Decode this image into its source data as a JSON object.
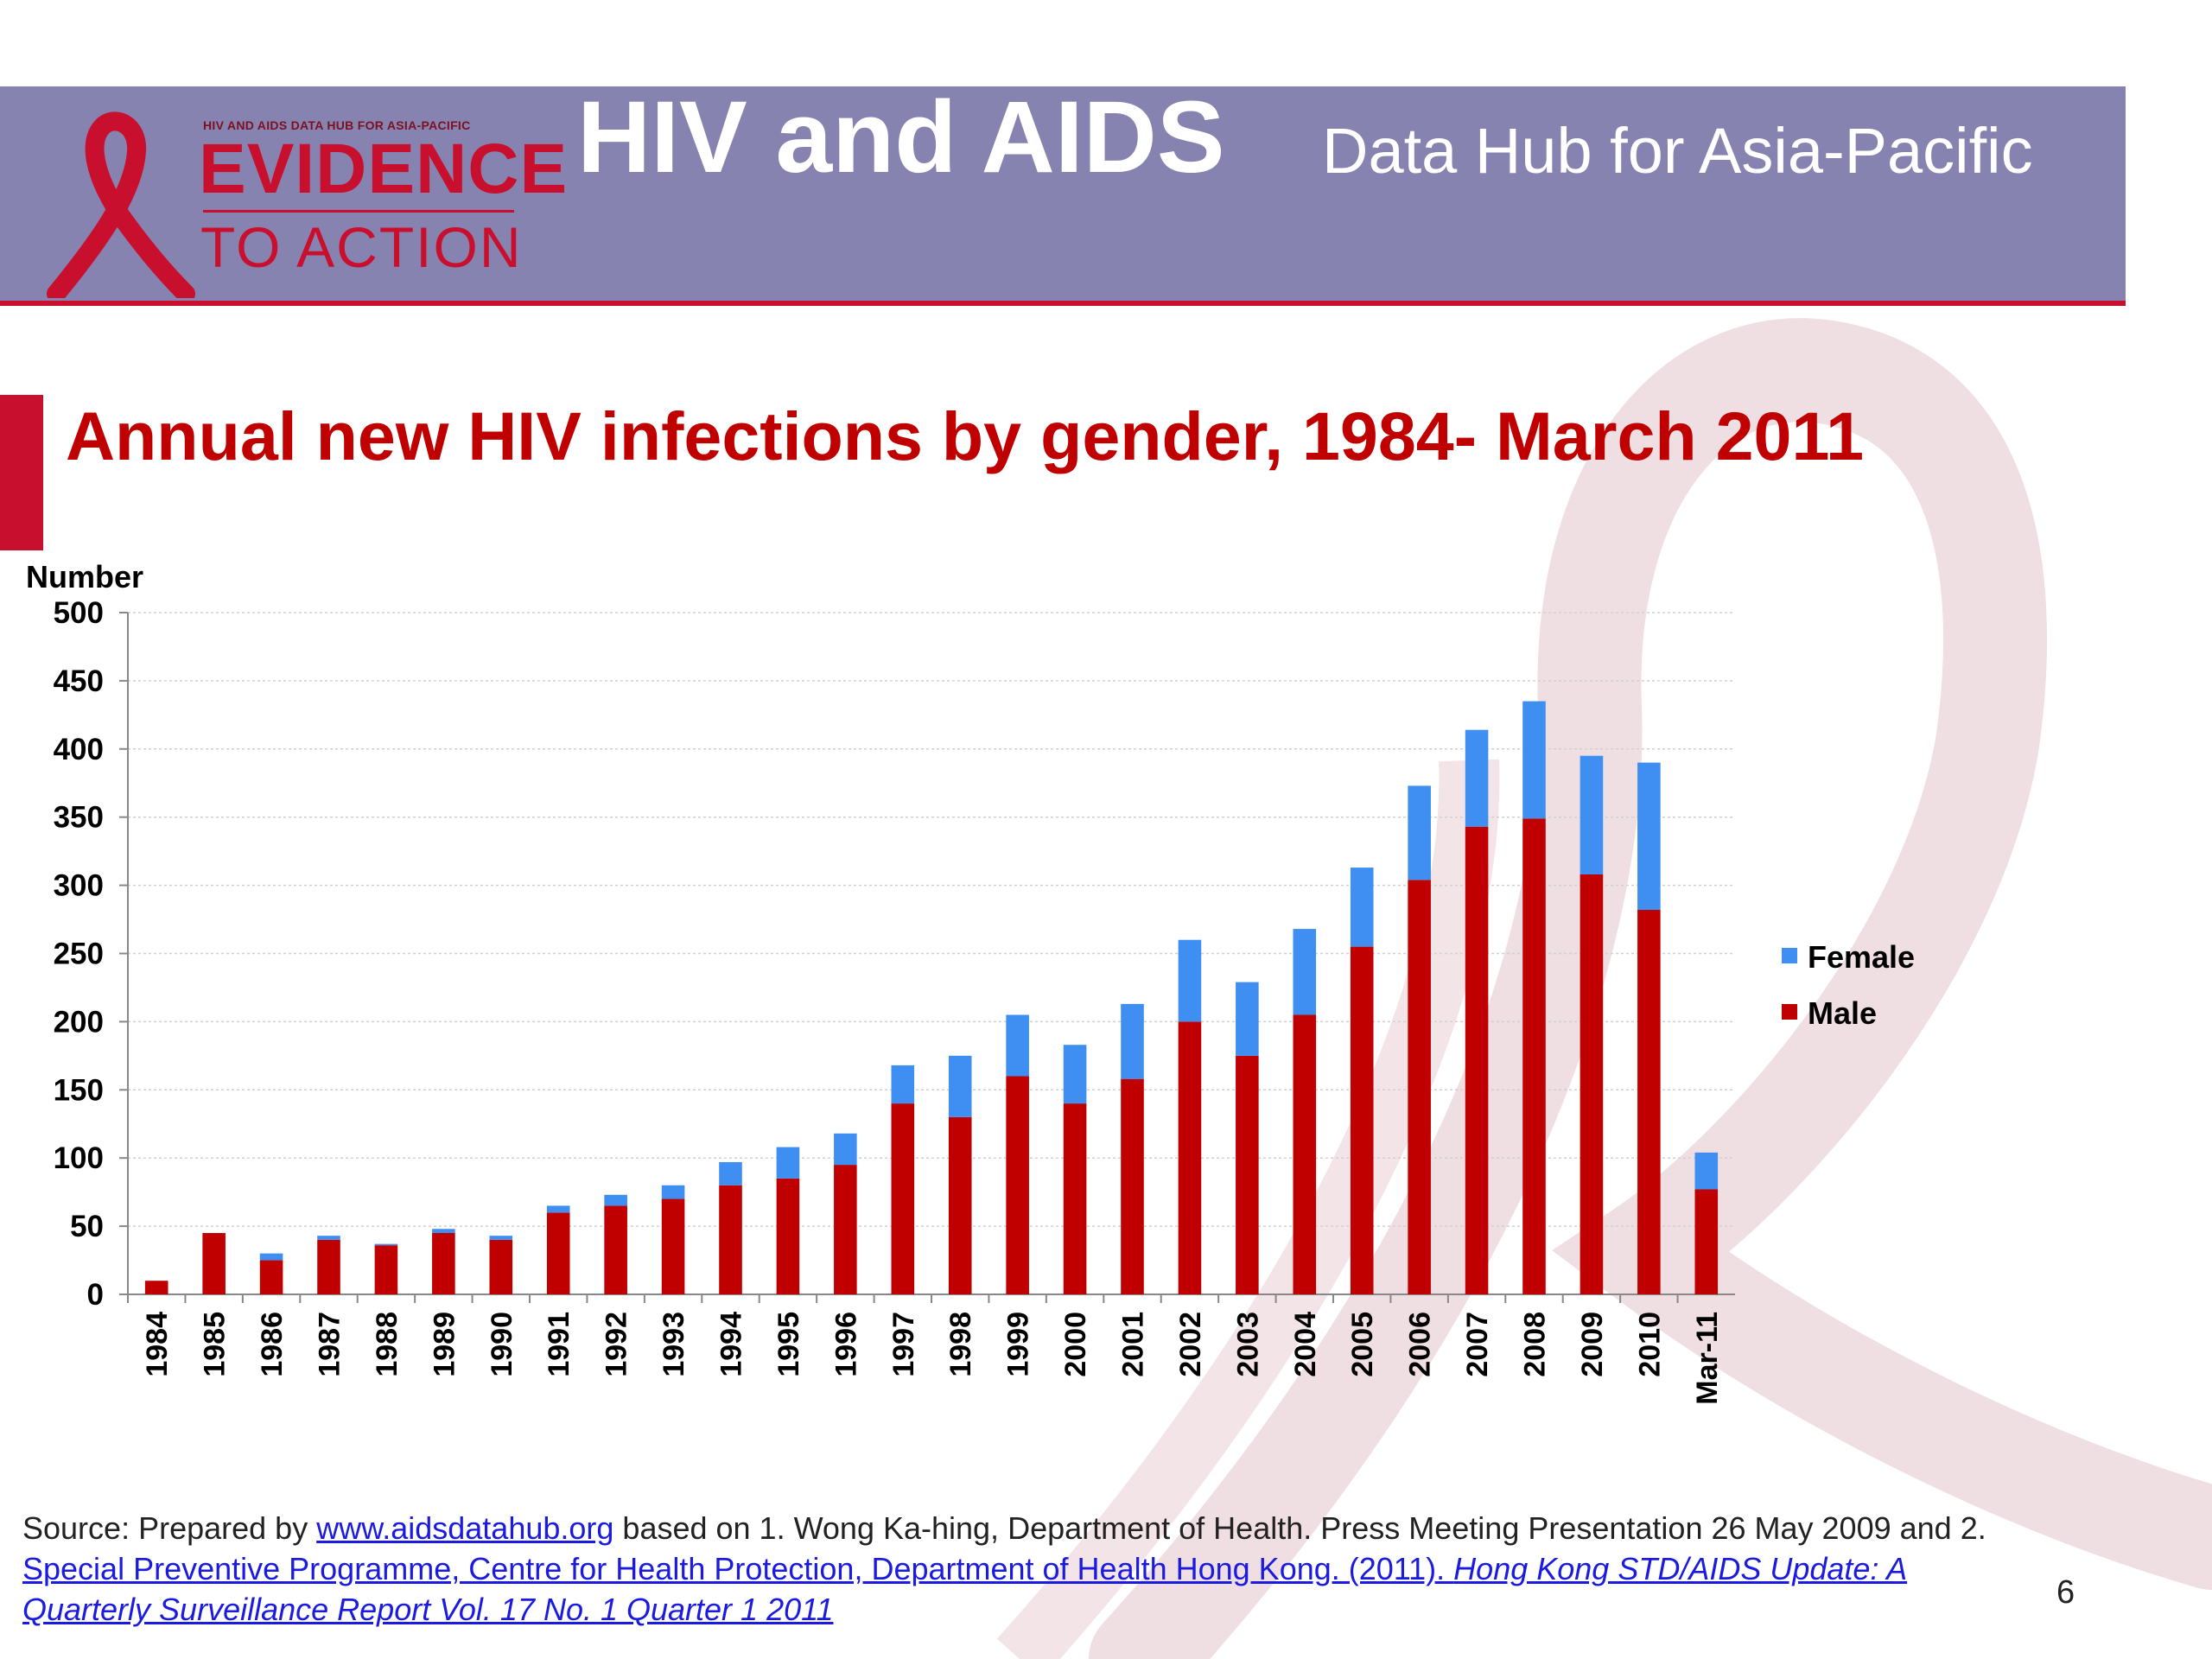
{
  "header": {
    "logo_tagline": "HIV AND AIDS DATA HUB FOR ASIA-PACIFIC",
    "logo_line1": "EVIDENCE",
    "logo_line2": "TO ACTION",
    "brand_title": "HIV and AIDS",
    "brand_subtitle": "Data Hub for Asia-Pacific"
  },
  "slide": {
    "title": "Annual new HIV infections by gender, 1984- March 2011",
    "page_number": "6"
  },
  "source": {
    "prefix": "Source: Prepared by ",
    "link1": "www.aidsdatahub.org",
    "middle": "  based on 1. Wong Ka-hing, Department of Health. Press Meeting Presentation 26 May 2009 and 2. ",
    "link2": "Special Preventive Programme, Centre for Health Protection, Department of Health Hong Kong. (2011). ",
    "link2_italic": "Hong Kong STD/AIDS Update: A Quarterly Surveillance Report Vol. 17 No. 1 Quarter 1 2011"
  },
  "colors": {
    "banner": "#8783b0",
    "accent_red": "#c8102e",
    "title_red": "#c00000",
    "male": "#c00000",
    "female": "#3f8ef2",
    "ribbon_watermark": "#ecd8dd"
  },
  "chart_data": {
    "type": "bar",
    "stacked": true,
    "ylabel": "Number",
    "ylim": [
      0,
      500
    ],
    "yticks": [
      0,
      50,
      100,
      150,
      200,
      250,
      300,
      350,
      400,
      450,
      500
    ],
    "grid": true,
    "legend_position": "right",
    "categories": [
      "1984",
      "1985",
      "1986",
      "1987",
      "1988",
      "1989",
      "1990",
      "1991",
      "1992",
      "1993",
      "1994",
      "1995",
      "1996",
      "1997",
      "1998",
      "1999",
      "2000",
      "2001",
      "2002",
      "2003",
      "2004",
      "2005",
      "2006",
      "2007",
      "2008",
      "2009",
      "2010",
      "Mar-11"
    ],
    "series": [
      {
        "name": "Male",
        "color": "#c00000",
        "values": [
          10,
          45,
          25,
          40,
          36,
          45,
          40,
          60,
          65,
          70,
          80,
          85,
          95,
          140,
          130,
          160,
          140,
          158,
          200,
          175,
          205,
          255,
          304,
          343,
          349,
          308,
          282,
          77
        ]
      },
      {
        "name": "Female",
        "color": "#3f8ef2",
        "values": [
          0,
          0,
          5,
          3,
          1,
          3,
          3,
          5,
          8,
          10,
          17,
          23,
          23,
          28,
          45,
          45,
          43,
          55,
          60,
          54,
          63,
          58,
          69,
          71,
          86,
          87,
          108,
          27
        ]
      }
    ],
    "legend_order": [
      "Female",
      "Male"
    ]
  }
}
